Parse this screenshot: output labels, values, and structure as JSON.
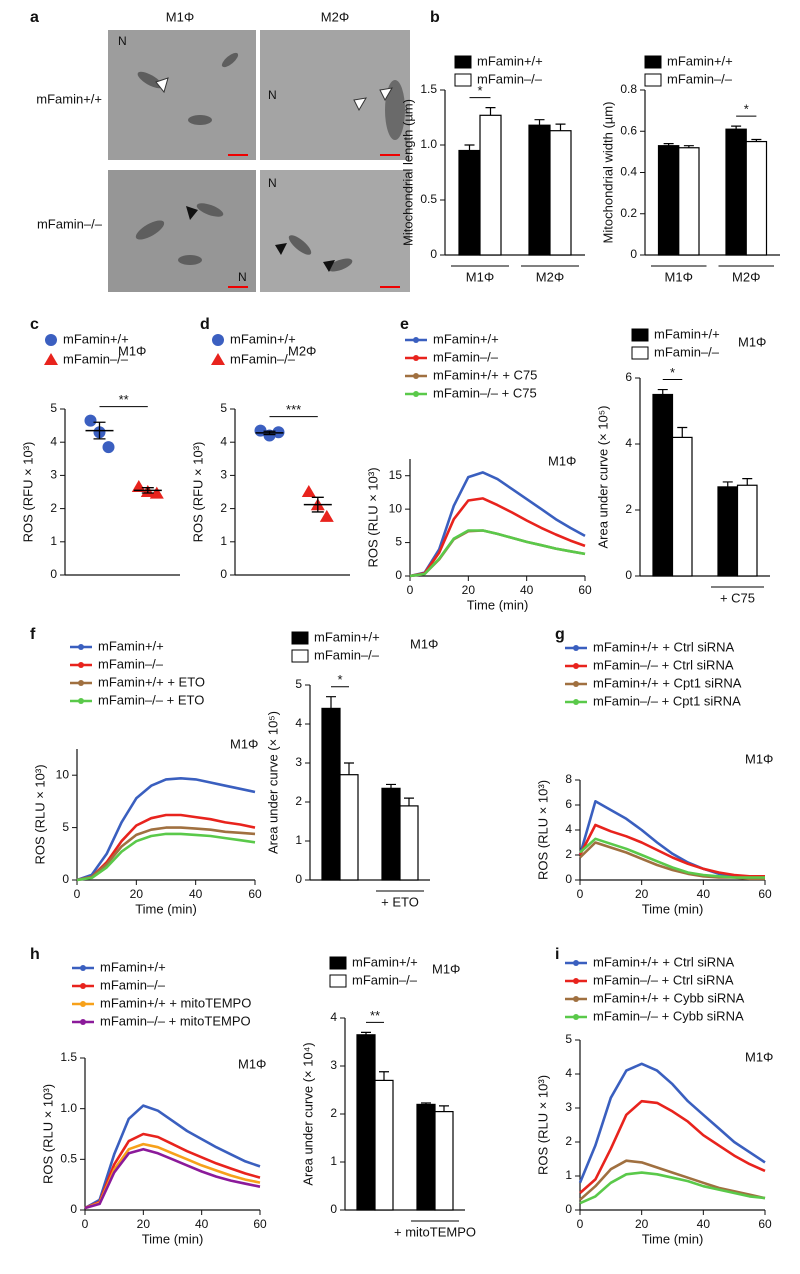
{
  "panel_labels": [
    "a",
    "b",
    "c",
    "d",
    "e",
    "f",
    "g",
    "h",
    "i"
  ],
  "image_panel": {
    "columns": [
      "M1Φ",
      "M2Φ"
    ],
    "rows": [
      "mFamin+/+",
      "mFamin–/–"
    ],
    "tile_labels": [
      "N",
      "N",
      "N",
      "N"
    ]
  },
  "chart_data": [
    {
      "type": "bar",
      "y_label": "Mitochondrial length (µm)",
      "categories": [
        "M1Φ",
        "M2Φ"
      ],
      "series": [
        {
          "name": "mFamin+/+",
          "color": "#000000",
          "values": [
            0.95,
            1.18
          ],
          "errors": [
            0.05,
            0.05
          ]
        },
        {
          "name": "mFamin–/–",
          "color": "#ffffff",
          "values": [
            1.27,
            1.13
          ],
          "errors": [
            0.07,
            0.06
          ]
        }
      ],
      "ylim": [
        0,
        1.5
      ],
      "yticks": [
        0,
        0.5,
        {
          "value": 1,
          "label": "1.0"
        },
        1.5
      ],
      "annotations": [
        {
          "label": "*",
          "group": 0
        }
      ]
    },
    {
      "type": "bar",
      "y_label": "Mitochondrial width (µm)",
      "categories": [
        "M1Φ",
        "M2Φ"
      ],
      "series": [
        {
          "name": "mFamin+/+",
          "color": "#000000",
          "values": [
            0.53,
            0.61
          ],
          "errors": [
            0.01,
            0.015
          ]
        },
        {
          "name": "mFamin–/–",
          "color": "#ffffff",
          "values": [
            0.52,
            0.55
          ],
          "errors": [
            0.01,
            0.01
          ]
        }
      ],
      "ylim": [
        0,
        0.8
      ],
      "yticks": [
        0,
        0.2,
        0.4,
        0.6,
        0.8
      ],
      "annotations": [
        {
          "label": "*",
          "group": 1
        }
      ]
    },
    {
      "type": "strip",
      "note": "M1Φ",
      "y_label": "ROS (RFU × 10³)",
      "series": [
        {
          "name": "mFamin+/+",
          "color": "#3b5fc0",
          "marker": "circle",
          "values": [
            4.65,
            4.3,
            3.85
          ],
          "mean": 4.35,
          "sem": 0.25
        },
        {
          "name": "mFamin–/–",
          "color": "#e8231d",
          "marker": "triangle",
          "values": [
            2.65,
            2.5,
            2.45
          ],
          "mean": 2.55,
          "sem": 0.08
        }
      ],
      "ylim": [
        0,
        5
      ],
      "yticks": [
        0,
        1,
        2,
        3,
        4,
        5
      ],
      "annotations": [
        {
          "label": "**"
        }
      ]
    },
    {
      "type": "strip",
      "note": "M2Φ",
      "y_label": "ROS (RFU × 10³)",
      "series": [
        {
          "name": "mFamin+/+",
          "color": "#3b5fc0",
          "marker": "circle",
          "values": [
            4.35,
            4.2,
            4.3
          ],
          "mean": 4.28,
          "sem": 0.05
        },
        {
          "name": "mFamin–/–",
          "color": "#e8231d",
          "marker": "triangle",
          "values": [
            2.5,
            2.1,
            1.75
          ],
          "mean": 2.12,
          "sem": 0.22
        }
      ],
      "ylim": [
        0,
        5
      ],
      "yticks": [
        0,
        1,
        2,
        3,
        4,
        5
      ],
      "annotations": [
        {
          "label": "***"
        }
      ]
    },
    {
      "type": "line",
      "note": "M1Φ",
      "y_label": "ROS (RLU × 10³)",
      "x_label": "Time (min)",
      "x": [
        0,
        5,
        10,
        15,
        20,
        25,
        30,
        35,
        40,
        45,
        50,
        55,
        60
      ],
      "xlim": [
        0,
        60
      ],
      "xticks": [
        0,
        20,
        40,
        60
      ],
      "ylim": [
        0,
        17.5
      ],
      "yticks": [
        0,
        5,
        10,
        15
      ],
      "series": [
        {
          "name": "mFamin+/+",
          "color": "#3a5fbf",
          "values": [
            0,
            0.5,
            4,
            10.5,
            14.8,
            15.5,
            14.5,
            13,
            11.5,
            10,
            8.5,
            7.2,
            6
          ]
        },
        {
          "name": "mFamin–/–",
          "color": "#e8231d",
          "values": [
            0,
            0.4,
            3.5,
            8.5,
            11.3,
            11.6,
            10.6,
            9.5,
            8.3,
            7.2,
            6.2,
            5.3,
            4.5
          ]
        },
        {
          "name": "mFamin+/+ + C75",
          "color": "#a07040",
          "values": [
            0,
            0.3,
            2.5,
            5.5,
            6.7,
            6.8,
            6.3,
            5.7,
            5.1,
            4.6,
            4.1,
            3.7,
            3.3
          ]
        },
        {
          "name": "mFamin–/– + C75",
          "color": "#5ac94a",
          "values": [
            0,
            0.3,
            2.6,
            5.6,
            6.8,
            6.8,
            6.3,
            5.7,
            5.1,
            4.6,
            4.1,
            3.7,
            3.3
          ]
        }
      ]
    },
    {
      "type": "bar",
      "note": "M1Φ",
      "y_label": "Area under curve (× 10⁵)",
      "categories": [
        null,
        "+ C75"
      ],
      "series": [
        {
          "name": "mFamin+/+",
          "color": "#000000",
          "values": [
            5.5,
            2.7
          ],
          "errors": [
            0.15,
            0.15
          ]
        },
        {
          "name": "mFamin–/–",
          "color": "#ffffff",
          "values": [
            4.2,
            2.75
          ],
          "errors": [
            0.3,
            0.2
          ]
        }
      ],
      "ylim": [
        0,
        6
      ],
      "yticks": [
        0,
        2,
        4,
        6
      ],
      "annotations": [
        {
          "label": "*",
          "group": 0
        }
      ]
    },
    {
      "type": "line",
      "note": "M1Φ",
      "y_label": "ROS (RLU × 10³)",
      "x_label": "Time (min)",
      "x": [
        0,
        5,
        10,
        15,
        20,
        25,
        30,
        35,
        40,
        45,
        50,
        55,
        60
      ],
      "xlim": [
        0,
        60
      ],
      "xticks": [
        0,
        20,
        40,
        60
      ],
      "ylim": [
        0,
        12.5
      ],
      "yticks": [
        0,
        5,
        10
      ],
      "series": [
        {
          "name": "mFamin+/+",
          "color": "#3a5fbf",
          "values": [
            0,
            0.5,
            2.5,
            5.5,
            7.8,
            9.0,
            9.6,
            9.7,
            9.6,
            9.3,
            9.0,
            8.7,
            8.4
          ]
        },
        {
          "name": "mFamin–/–",
          "color": "#e8231d",
          "values": [
            0,
            0.3,
            1.7,
            3.7,
            5.2,
            5.9,
            6.2,
            6.2,
            6.0,
            5.8,
            5.5,
            5.3,
            5.0
          ]
        },
        {
          "name": "mFamin+/+ + ETO",
          "color": "#a07040",
          "values": [
            0,
            0.3,
            1.5,
            3.2,
            4.3,
            4.8,
            5.0,
            5.0,
            4.9,
            4.8,
            4.6,
            4.5,
            4.4
          ]
        },
        {
          "name": "mFamin–/– + ETO",
          "color": "#5ac94a",
          "values": [
            0,
            0.2,
            1.2,
            2.7,
            3.7,
            4.2,
            4.4,
            4.4,
            4.3,
            4.2,
            4.0,
            3.8,
            3.6
          ]
        }
      ]
    },
    {
      "type": "bar",
      "note": "M1Φ",
      "y_label": "Area under curve (× 10⁵)",
      "categories": [
        null,
        "+ ETO"
      ],
      "series": [
        {
          "name": "mFamin+/+",
          "color": "#000000",
          "values": [
            4.4,
            2.35
          ],
          "errors": [
            0.3,
            0.1
          ]
        },
        {
          "name": "mFamin–/–",
          "color": "#ffffff",
          "values": [
            2.7,
            1.9
          ],
          "errors": [
            0.3,
            0.2
          ]
        }
      ],
      "ylim": [
        0,
        5
      ],
      "yticks": [
        0,
        1,
        2,
        3,
        4,
        5
      ],
      "annotations": [
        {
          "label": "*",
          "group": 0
        }
      ]
    },
    {
      "type": "line",
      "note": "M1Φ",
      "y_label": "ROS (RLU × 10³)",
      "x_label": "Time (min)",
      "x": [
        0,
        5,
        10,
        15,
        20,
        25,
        30,
        35,
        40,
        45,
        50,
        55,
        60
      ],
      "xlim": [
        0,
        60
      ],
      "xticks": [
        0,
        20,
        40,
        60
      ],
      "ylim": [
        0,
        8
      ],
      "yticks": [
        0,
        2,
        4,
        6,
        8
      ],
      "series": [
        {
          "name": "mFamin+/+ + Ctrl siRNA",
          "color": "#3a5fbf",
          "values": [
            2.0,
            6.3,
            5.6,
            4.9,
            4.0,
            3.0,
            2.1,
            1.4,
            0.9,
            0.5,
            0.3,
            0.2,
            0.2
          ]
        },
        {
          "name": "mFamin–/– + Ctrl siRNA",
          "color": "#e8231d",
          "values": [
            2.0,
            4.4,
            3.9,
            3.5,
            3.0,
            2.4,
            1.8,
            1.3,
            0.9,
            0.6,
            0.4,
            0.3,
            0.3
          ]
        },
        {
          "name": "mFamin+/+ + Cpt1 siRNA",
          "color": "#a07040",
          "values": [
            1.8,
            3.0,
            2.6,
            2.2,
            1.7,
            1.2,
            0.8,
            0.5,
            0.3,
            0.2,
            0.2,
            0.1,
            0.1
          ]
        },
        {
          "name": "mFamin–/– + Cpt1 siRNA",
          "color": "#5ac94a",
          "values": [
            2.2,
            3.3,
            2.9,
            2.5,
            2.0,
            1.5,
            1.0,
            0.6,
            0.4,
            0.3,
            0.2,
            0.2,
            0.2
          ]
        }
      ]
    },
    {
      "type": "line",
      "note": "M1Φ",
      "y_label": "ROS (RLU × 10³)",
      "x_label": "Time (min)",
      "x": [
        0,
        5,
        10,
        15,
        20,
        25,
        30,
        35,
        40,
        45,
        50,
        55,
        60
      ],
      "xlim": [
        0,
        60
      ],
      "xticks": [
        0,
        20,
        40,
        60
      ],
      "ylim": [
        0,
        1.5
      ],
      "yticks": [
        0,
        0.5,
        {
          "value": 1,
          "label": "1.0"
        },
        1.5
      ],
      "series": [
        {
          "name": "mFamin+/+",
          "color": "#3a5fbf",
          "values": [
            0.02,
            0.1,
            0.55,
            0.9,
            1.03,
            0.98,
            0.88,
            0.78,
            0.7,
            0.62,
            0.55,
            0.48,
            0.43
          ]
        },
        {
          "name": "mFamin–/–",
          "color": "#e8231d",
          "values": [
            0.02,
            0.08,
            0.45,
            0.68,
            0.75,
            0.72,
            0.65,
            0.58,
            0.52,
            0.46,
            0.41,
            0.36,
            0.32
          ]
        },
        {
          "name": "mFamin+/+ + mitoTEMPO",
          "color": "#f7a11a",
          "values": [
            0.02,
            0.07,
            0.4,
            0.6,
            0.65,
            0.62,
            0.56,
            0.5,
            0.44,
            0.39,
            0.34,
            0.3,
            0.27
          ]
        },
        {
          "name": "mFamin–/– + mitoTEMPO",
          "color": "#8b1a9a",
          "values": [
            0.02,
            0.06,
            0.37,
            0.56,
            0.6,
            0.56,
            0.5,
            0.44,
            0.38,
            0.33,
            0.29,
            0.26,
            0.23
          ]
        }
      ]
    },
    {
      "type": "bar",
      "note": "M1Φ",
      "y_label": "Area under curve (× 10⁴)",
      "categories": [
        null,
        "+ mitoTEMPO"
      ],
      "series": [
        {
          "name": "mFamin+/+",
          "color": "#000000",
          "values": [
            3.65,
            2.2
          ],
          "errors": [
            0.05,
            0.03
          ]
        },
        {
          "name": "mFamin–/–",
          "color": "#ffffff",
          "values": [
            2.7,
            2.05
          ],
          "errors": [
            0.18,
            0.12
          ]
        }
      ],
      "ylim": [
        0,
        4
      ],
      "yticks": [
        0,
        1,
        2,
        3,
        4
      ],
      "annotations": [
        {
          "label": "**",
          "group": 0
        }
      ]
    },
    {
      "type": "line",
      "note": "M1Φ",
      "y_label": "ROS (RLU × 10³)",
      "x_label": "Time (min)",
      "x": [
        0,
        5,
        10,
        15,
        20,
        25,
        30,
        35,
        40,
        45,
        50,
        55,
        60
      ],
      "xlim": [
        0,
        60
      ],
      "xticks": [
        0,
        20,
        40,
        60
      ],
      "ylim": [
        0,
        5
      ],
      "yticks": [
        0,
        1,
        2,
        3,
        4,
        5
      ],
      "series": [
        {
          "name": "mFamin+/+ + Ctrl siRNA",
          "color": "#3a5fbf",
          "values": [
            0.8,
            1.9,
            3.3,
            4.1,
            4.3,
            4.1,
            3.7,
            3.2,
            2.8,
            2.4,
            2.0,
            1.7,
            1.4
          ]
        },
        {
          "name": "mFamin–/– + Ctrl siRNA",
          "color": "#e8231d",
          "values": [
            0.5,
            0.9,
            1.8,
            2.8,
            3.2,
            3.15,
            2.9,
            2.6,
            2.2,
            1.9,
            1.6,
            1.35,
            1.15
          ]
        },
        {
          "name": "mFamin+/+ + Cybb siRNA",
          "color": "#a07040",
          "values": [
            0.3,
            0.7,
            1.2,
            1.45,
            1.4,
            1.25,
            1.1,
            0.95,
            0.8,
            0.65,
            0.55,
            0.45,
            0.35
          ]
        },
        {
          "name": "mFamin–/– + Cybb siRNA",
          "color": "#5ac94a",
          "values": [
            0.2,
            0.4,
            0.8,
            1.05,
            1.1,
            1.05,
            0.95,
            0.85,
            0.7,
            0.6,
            0.5,
            0.4,
            0.35
          ]
        }
      ]
    }
  ]
}
